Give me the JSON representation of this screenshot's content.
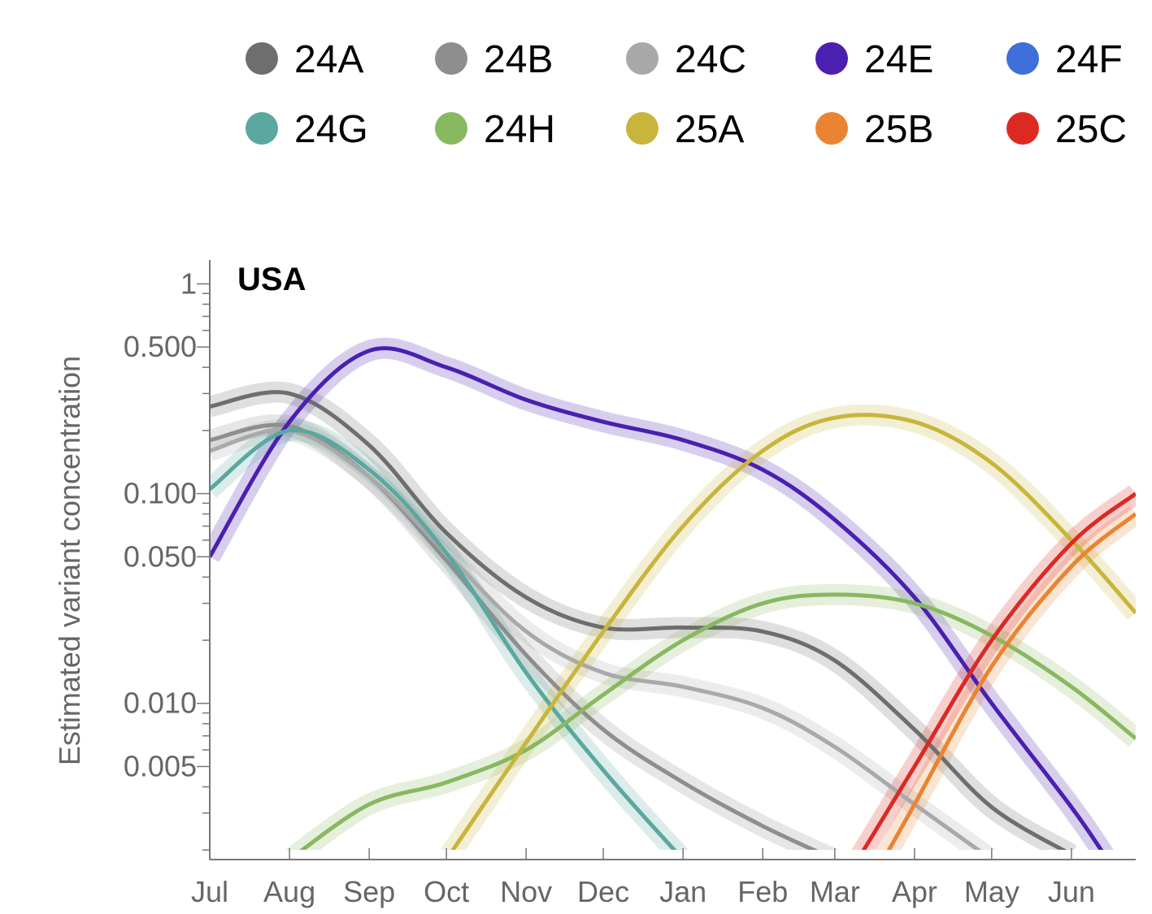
{
  "chart_data": {
    "type": "line",
    "title": "USA",
    "xlabel": "",
    "ylabel": "Estimated variant concentration",
    "yscale": "log",
    "ylim": [
      0.0018,
      1.3
    ],
    "xlim": [
      "2024-07-01",
      "2025-06-26"
    ],
    "x_ticks": [
      "Jul",
      "Aug",
      "Sep",
      "Oct",
      "Nov",
      "Dec",
      "Jan",
      "Feb",
      "Mar",
      "Apr",
      "May",
      "Jun"
    ],
    "x_tick_dates": [
      "2024-07-01",
      "2024-08-01",
      "2024-09-01",
      "2024-10-01",
      "2024-11-01",
      "2024-12-01",
      "2025-01-01",
      "2025-02-01",
      "2025-03-01",
      "2025-04-01",
      "2025-05-01",
      "2025-06-01"
    ],
    "y_ticks": [
      "1",
      "0.500",
      "0.100",
      "0.050",
      "0.010",
      "0.005"
    ],
    "y_tick_values": [
      1,
      0.5,
      0.1,
      0.05,
      0.01,
      0.005
    ],
    "grid": false,
    "legend_position": "top",
    "series": [
      {
        "name": "24A",
        "color": "#6e6e6e",
        "x": [
          "2024-07-01",
          "2024-08-01",
          "2024-09-01",
          "2024-10-01",
          "2024-11-01",
          "2024-12-01",
          "2025-01-01",
          "2025-02-01",
          "2025-03-01",
          "2025-04-01",
          "2025-05-01",
          "2025-06-01"
        ],
        "y": [
          0.26,
          0.3,
          0.17,
          0.065,
          0.032,
          0.023,
          0.023,
          0.022,
          0.016,
          0.0075,
          0.0032,
          0.0019
        ]
      },
      {
        "name": "24B",
        "color": "#8e8e8e",
        "x": [
          "2024-07-01",
          "2024-08-01",
          "2024-09-01",
          "2024-10-01",
          "2024-11-01",
          "2024-12-01",
          "2025-01-01",
          "2025-02-01",
          "2025-03-01"
        ],
        "y": [
          0.18,
          0.21,
          0.12,
          0.048,
          0.017,
          0.0075,
          0.0042,
          0.0026,
          0.0018
        ]
      },
      {
        "name": "24C",
        "color": "#a9a9a9",
        "x": [
          "2024-07-01",
          "2024-08-01",
          "2024-09-01",
          "2024-10-01",
          "2024-11-01",
          "2024-12-01",
          "2025-01-01",
          "2025-02-01",
          "2025-03-01",
          "2025-04-01",
          "2025-05-01"
        ],
        "y": [
          0.16,
          0.2,
          0.12,
          0.052,
          0.022,
          0.014,
          0.012,
          0.0095,
          0.0062,
          0.0033,
          0.0018
        ]
      },
      {
        "name": "24E",
        "color": "#4b1fb0",
        "x": [
          "2024-07-01",
          "2024-08-01",
          "2024-09-01",
          "2024-10-01",
          "2024-11-01",
          "2024-12-01",
          "2025-01-01",
          "2025-02-01",
          "2025-03-01",
          "2025-04-01",
          "2025-05-01",
          "2025-06-01",
          "2025-06-15"
        ],
        "y": [
          0.05,
          0.22,
          0.48,
          0.4,
          0.28,
          0.22,
          0.18,
          0.13,
          0.075,
          0.032,
          0.01,
          0.0032,
          0.0018
        ]
      },
      {
        "name": "24F",
        "color": "#3f6fd8",
        "x": [],
        "y": []
      },
      {
        "name": "24G",
        "color": "#5aa8a0",
        "x": [
          "2024-07-01",
          "2024-08-01",
          "2024-09-01",
          "2024-10-01",
          "2024-11-01",
          "2024-12-01",
          "2025-01-01"
        ],
        "y": [
          0.105,
          0.2,
          0.13,
          0.052,
          0.014,
          0.0048,
          0.0018
        ]
      },
      {
        "name": "24H",
        "color": "#88b860",
        "x": [
          "2024-08-01",
          "2024-09-01",
          "2024-10-01",
          "2024-11-01",
          "2024-12-01",
          "2025-01-01",
          "2025-02-01",
          "2025-03-01",
          "2025-04-01",
          "2025-05-01",
          "2025-06-01",
          "2025-06-26"
        ],
        "y": [
          0.0018,
          0.0033,
          0.0042,
          0.006,
          0.011,
          0.02,
          0.03,
          0.033,
          0.03,
          0.021,
          0.012,
          0.0068
        ]
      },
      {
        "name": "25A",
        "color": "#c9b53c",
        "x": [
          "2024-10-01",
          "2024-11-01",
          "2024-12-01",
          "2025-01-01",
          "2025-02-01",
          "2025-03-01",
          "2025-04-01",
          "2025-05-01",
          "2025-06-01",
          "2025-06-26"
        ],
        "y": [
          0.0018,
          0.0065,
          0.022,
          0.07,
          0.16,
          0.23,
          0.22,
          0.14,
          0.06,
          0.027
        ]
      },
      {
        "name": "25B",
        "color": "#ea8432",
        "x": [
          "2025-03-20",
          "2025-04-01",
          "2025-05-01",
          "2025-06-01",
          "2025-06-26"
        ],
        "y": [
          0.0018,
          0.0033,
          0.015,
          0.045,
          0.08
        ]
      },
      {
        "name": "25C",
        "color": "#dc2a22",
        "x": [
          "2025-03-10",
          "2025-04-01",
          "2025-05-01",
          "2025-06-01",
          "2025-06-26"
        ],
        "y": [
          0.0018,
          0.005,
          0.02,
          0.058,
          0.1
        ]
      }
    ]
  }
}
